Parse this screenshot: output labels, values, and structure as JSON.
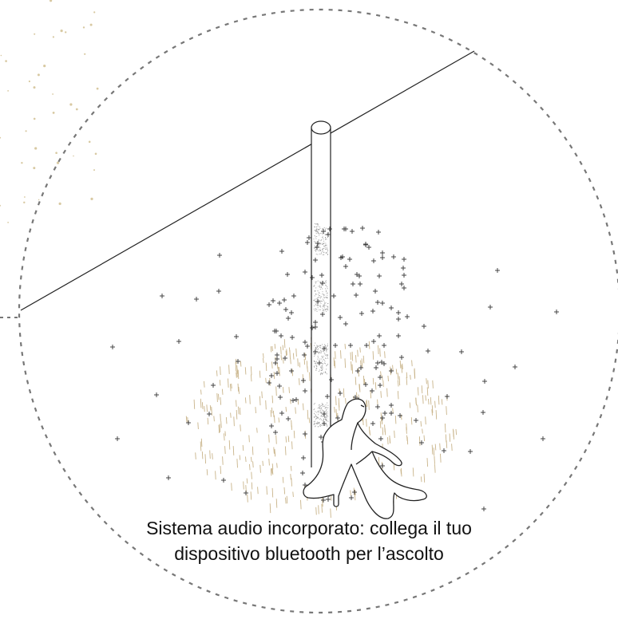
{
  "caption": {
    "line1": "Sistema audio incorporato: collega il tuo",
    "line2": "dispositivo bluetooth per l’ascolto"
  },
  "colors": {
    "dash_circle": "#777777",
    "line": "#222222",
    "plus": "#333333",
    "rain": "#c9b48a",
    "dots": "#d8c9a2"
  }
}
